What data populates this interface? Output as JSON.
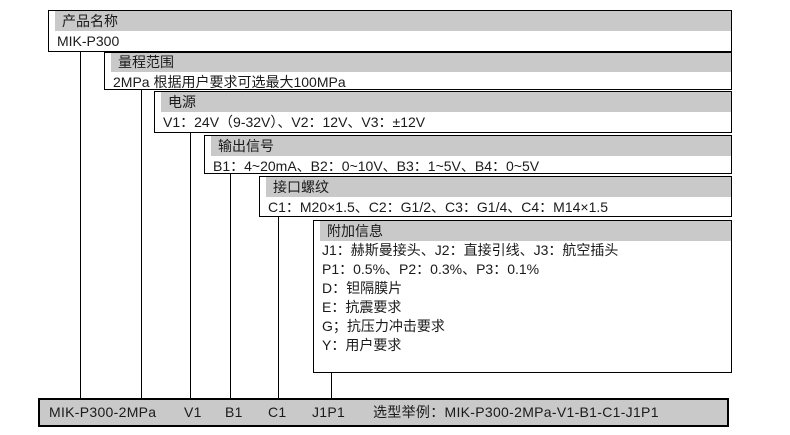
{
  "colors": {
    "header_bg": "#c9c9c9",
    "bar_bg": "#c9c9c9",
    "border": "#000000",
    "text": "#1a1a1a",
    "page_bg": "#ffffff"
  },
  "sections": [
    {
      "label": "产品名称",
      "lines": [
        "MIK-P300"
      ]
    },
    {
      "label": "量程范围",
      "lines": [
        "2MPa 根据用户要求可选最大100MPa"
      ]
    },
    {
      "label": "电源",
      "lines": [
        "V1：24V（9-32V）、V2：12V、V3：±12V"
      ]
    },
    {
      "label": "输出信号",
      "lines": [
        "B1：4~20mA、B2：0~10V、B3：1~5V、B4：0~5V"
      ]
    },
    {
      "label": "接口螺纹",
      "lines": [
        "C1：M20×1.5、C2：G1/2、C3：G1/4、C4：M14×1.5"
      ]
    },
    {
      "label": "附加信息",
      "lines": [
        "J1：赫斯曼接头、J2：直接引线、J3：航空插头",
        "P1：0.5%、P2：0.3%、P3：0.1%",
        "D：钽隔膜片",
        "E：抗震要求",
        "G；抗压力冲击要求",
        "Y：用户要求"
      ]
    }
  ],
  "code_bar": {
    "segments": [
      "MIK-P300-2MPa",
      "V1",
      "B1",
      "C1",
      "J1P1"
    ],
    "example": "选型举例：MIK-P300-2MPa-V1-B1-C1-J1P1"
  }
}
